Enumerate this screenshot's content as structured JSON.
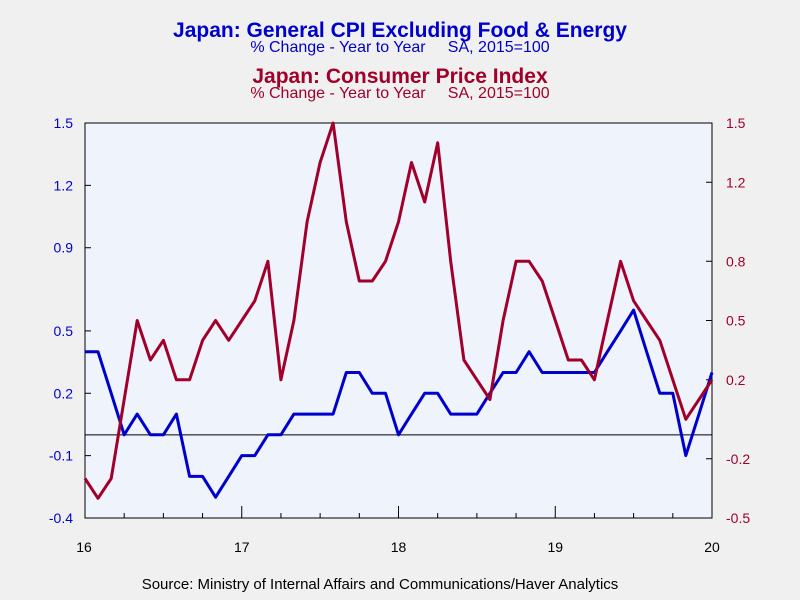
{
  "colors": {
    "core_cpi": "#0000cc",
    "headline_cpi": "#a0002a",
    "plot_bg": "#eef3fc",
    "page_bg": "#f0f0f0"
  },
  "titles": {
    "title1": "Japan: General CPI Excluding Food & Energy",
    "subtitle1": "% Change - Year to Year     SA, 2015=100",
    "title2": "Japan: Consumer Price Index",
    "subtitle2": "% Change - Year to Year     SA, 2015=100"
  },
  "source": "Source:  Ministry of Internal Affairs and Communications/Haver Analytics",
  "chart_data": {
    "type": "line",
    "grid": false,
    "x_axis": {
      "range": [
        2016.0,
        2020.0
      ],
      "ticks": [
        2016,
        2017,
        2018,
        2019,
        2020
      ],
      "tick_labels": [
        "16",
        "17",
        "18",
        "19",
        "20"
      ]
    },
    "y_left": {
      "range": [
        -0.4,
        1.5
      ],
      "ticks": [
        -0.4,
        -0.1,
        0.2,
        0.5,
        0.9,
        1.2,
        1.5
      ],
      "tick_labels": [
        "-0.4",
        "-0.1",
        "0.2",
        "0.5",
        "0.9",
        "1.2",
        "1.5"
      ]
    },
    "y_right": {
      "range": [
        -0.5,
        1.5
      ],
      "ticks": [
        -0.5,
        -0.2,
        0.2,
        0.5,
        0.8,
        1.2,
        1.5
      ],
      "tick_labels": [
        "-0.5",
        "-0.2",
        "0.2",
        "0.5",
        "0.8",
        "1.2",
        "1.5"
      ]
    },
    "zero_line": 0.0,
    "series": [
      {
        "name": "Japan: General CPI Excluding Food & Energy",
        "axis": "left",
        "x": [
          2016.0,
          2016.083,
          2016.167,
          2016.25,
          2016.333,
          2016.417,
          2016.5,
          2016.583,
          2016.667,
          2016.75,
          2016.833,
          2016.917,
          2017.0,
          2017.083,
          2017.167,
          2017.25,
          2017.333,
          2017.417,
          2017.5,
          2017.583,
          2017.667,
          2017.75,
          2017.833,
          2017.917,
          2018.0,
          2018.083,
          2018.167,
          2018.25,
          2018.333,
          2018.417,
          2018.5,
          2018.583,
          2018.667,
          2018.75,
          2018.833,
          2018.917,
          2019.0,
          2019.083,
          2019.167,
          2019.25,
          2019.333,
          2019.417,
          2019.5,
          2019.583,
          2019.667,
          2019.75,
          2019.833,
          2019.917,
          2020.0
        ],
        "values": [
          0.4,
          0.4,
          0.2,
          0.0,
          0.1,
          0.0,
          0.0,
          0.1,
          -0.2,
          -0.2,
          -0.3,
          -0.2,
          -0.1,
          -0.1,
          0.0,
          0.0,
          0.1,
          0.1,
          0.1,
          0.1,
          0.3,
          0.3,
          0.2,
          0.2,
          0.0,
          0.1,
          0.2,
          0.2,
          0.1,
          0.1,
          0.1,
          0.2,
          0.3,
          0.3,
          0.4,
          0.3,
          0.3,
          0.3,
          0.3,
          0.3,
          0.4,
          0.5,
          0.6,
          0.4,
          0.2,
          0.2,
          -0.1,
          0.1,
          0.3
        ]
      },
      {
        "name": "Japan: Consumer Price Index",
        "axis": "right",
        "x": [
          2016.0,
          2016.083,
          2016.167,
          2016.25,
          2016.333,
          2016.417,
          2016.5,
          2016.583,
          2016.667,
          2016.75,
          2016.833,
          2016.917,
          2017.0,
          2017.083,
          2017.167,
          2017.25,
          2017.333,
          2017.417,
          2017.5,
          2017.583,
          2017.667,
          2017.75,
          2017.833,
          2017.917,
          2018.0,
          2018.083,
          2018.167,
          2018.25,
          2018.333,
          2018.417,
          2018.5,
          2018.583,
          2018.667,
          2018.75,
          2018.833,
          2018.917,
          2019.0,
          2019.083,
          2019.167,
          2019.25,
          2019.333,
          2019.417,
          2019.5,
          2019.583,
          2019.667,
          2019.75,
          2019.833,
          2019.917,
          2020.0
        ],
        "values": [
          -0.3,
          -0.4,
          -0.3,
          0.1,
          0.5,
          0.3,
          0.4,
          0.2,
          0.2,
          0.4,
          0.5,
          0.4,
          0.5,
          0.6,
          0.8,
          0.2,
          0.5,
          1.0,
          1.3,
          1.5,
          1.0,
          0.7,
          0.7,
          0.8,
          1.0,
          1.3,
          1.1,
          1.4,
          0.8,
          0.3,
          0.2,
          0.1,
          0.5,
          0.8,
          0.8,
          0.7,
          0.5,
          0.3,
          0.3,
          0.2,
          0.5,
          0.8,
          0.6,
          0.5,
          0.4,
          0.2,
          0.0,
          0.1,
          0.2
        ]
      }
    ]
  }
}
